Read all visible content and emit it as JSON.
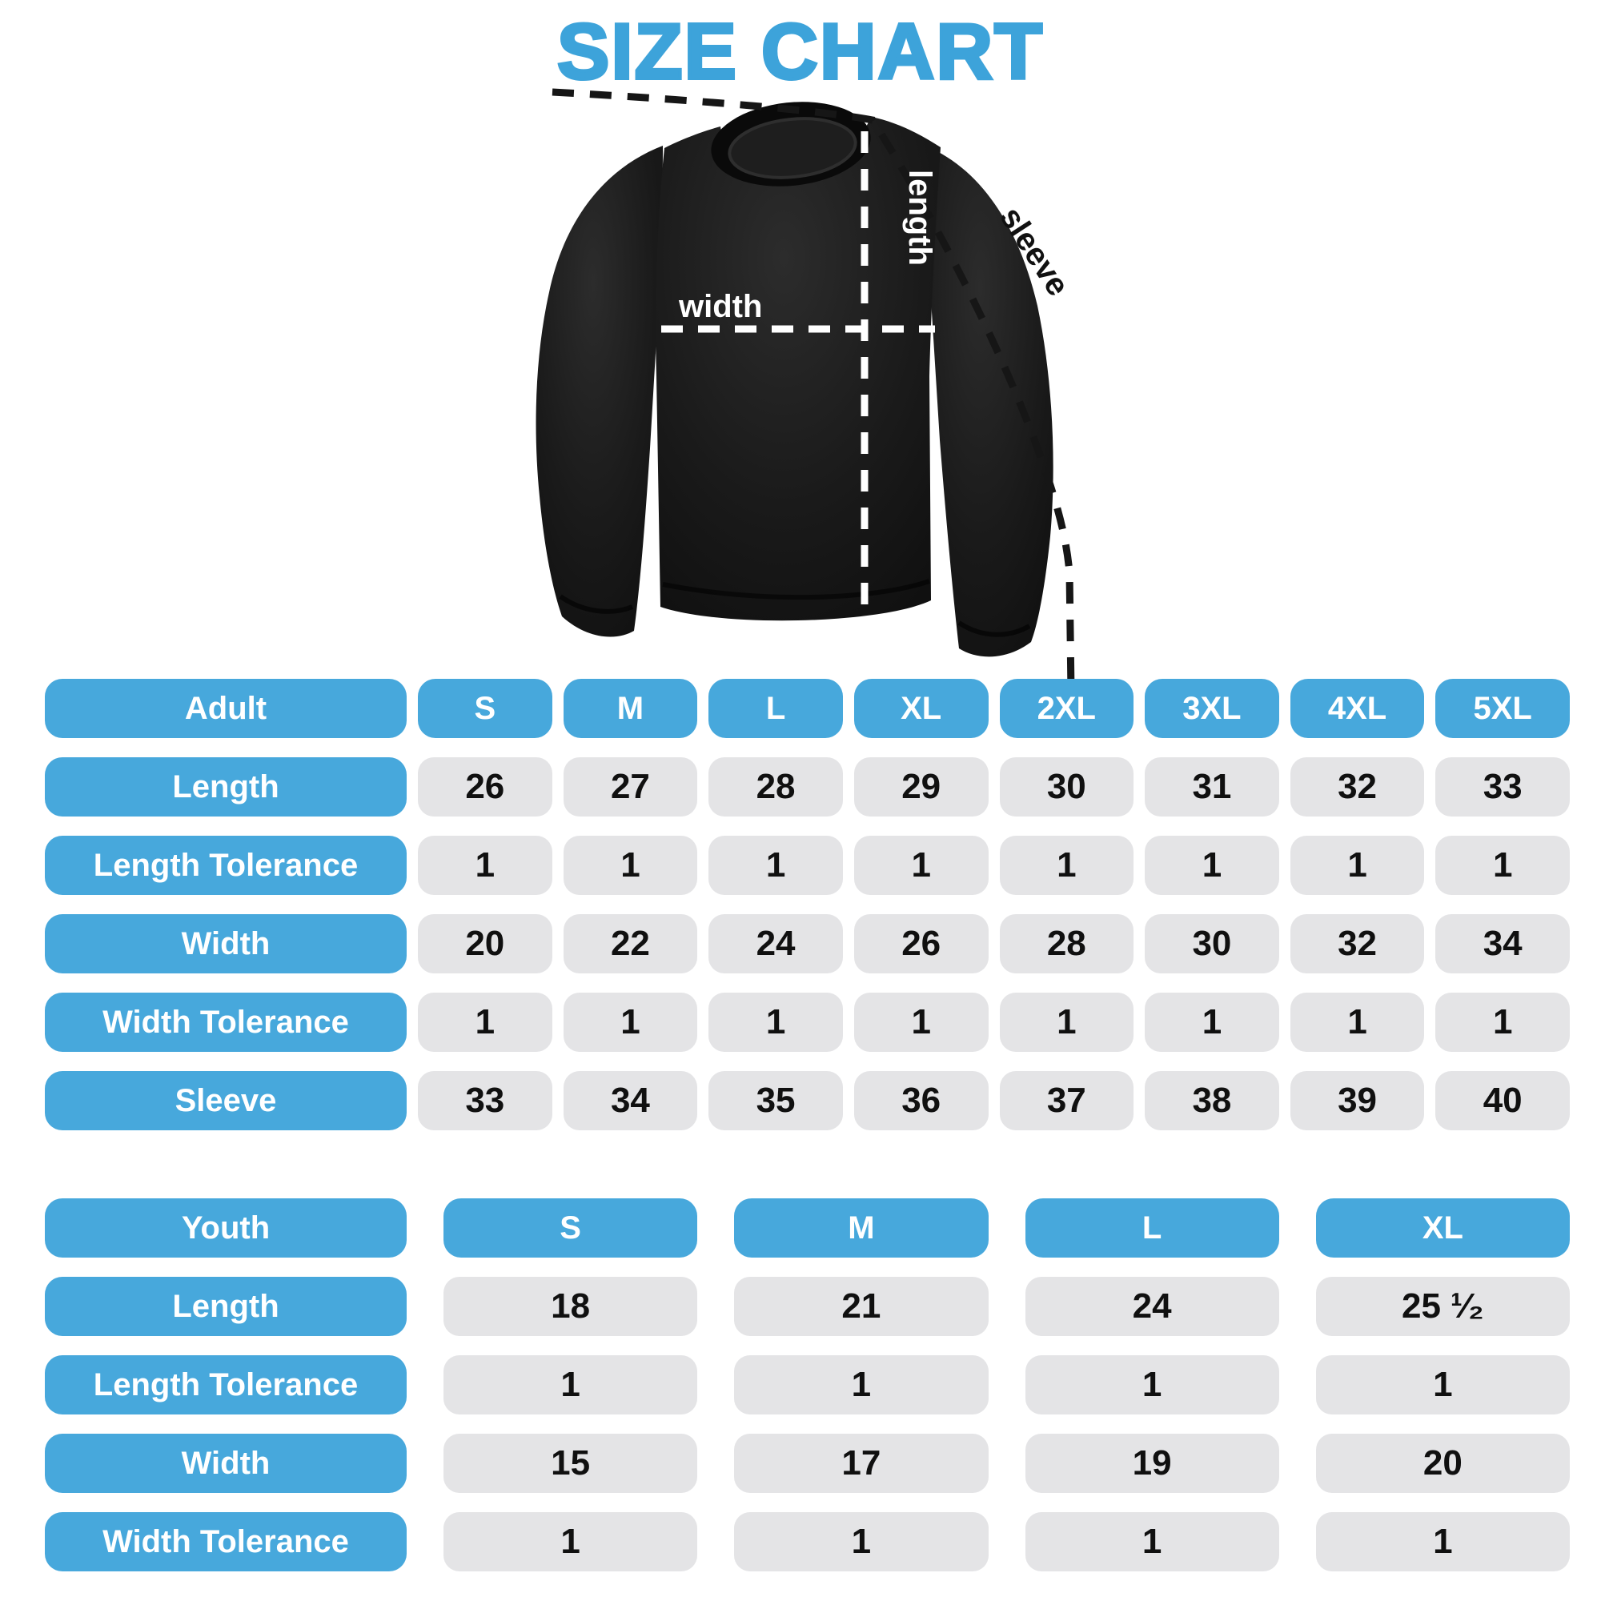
{
  "title": "SIZE CHART",
  "colors": {
    "accent_blue": "#47A8DC",
    "title_blue": "#3DA3DA",
    "cell_grey": "#E4E4E6",
    "number_black": "#101010",
    "shirt_black": "#1a1a1a"
  },
  "diagram": {
    "labels": {
      "length": "length",
      "width": "width",
      "sleeve": "sleeve"
    }
  },
  "adult_table": {
    "header": {
      "label": "Adult",
      "sizes": [
        "S",
        "M",
        "L",
        "XL",
        "2XL",
        "3XL",
        "4XL",
        "5XL"
      ]
    },
    "rows": [
      {
        "label": "Length",
        "values": [
          "26",
          "27",
          "28",
          "29",
          "30",
          "31",
          "32",
          "33"
        ]
      },
      {
        "label": "Length Tolerance",
        "values": [
          "1",
          "1",
          "1",
          "1",
          "1",
          "1",
          "1",
          "1"
        ]
      },
      {
        "label": "Width",
        "values": [
          "20",
          "22",
          "24",
          "26",
          "28",
          "30",
          "32",
          "34"
        ]
      },
      {
        "label": "Width Tolerance",
        "values": [
          "1",
          "1",
          "1",
          "1",
          "1",
          "1",
          "1",
          "1"
        ]
      },
      {
        "label": "Sleeve",
        "values": [
          "33",
          "34",
          "35",
          "36",
          "37",
          "38",
          "39",
          "40"
        ]
      }
    ]
  },
  "youth_table": {
    "header": {
      "label": "Youth",
      "sizes": [
        "S",
        "M",
        "L",
        "XL"
      ]
    },
    "rows": [
      {
        "label": "Length",
        "values": [
          "18",
          "21",
          "24",
          "25 ¹⁄₂"
        ]
      },
      {
        "label": "Length Tolerance",
        "values": [
          "1",
          "1",
          "1",
          "1"
        ]
      },
      {
        "label": "Width",
        "values": [
          "15",
          "17",
          "19",
          "20"
        ]
      },
      {
        "label": "Width Tolerance",
        "values": [
          "1",
          "1",
          "1",
          "1"
        ]
      }
    ]
  },
  "chart_data": [
    {
      "type": "table",
      "title": "Adult size chart (sweatshirt, inches)",
      "columns": [
        "Adult",
        "S",
        "M",
        "L",
        "XL",
        "2XL",
        "3XL",
        "4XL",
        "5XL"
      ],
      "rows": [
        [
          "Length",
          26,
          27,
          28,
          29,
          30,
          31,
          32,
          33
        ],
        [
          "Length Tolerance",
          1,
          1,
          1,
          1,
          1,
          1,
          1,
          1
        ],
        [
          "Width",
          20,
          22,
          24,
          26,
          28,
          30,
          32,
          34
        ],
        [
          "Width Tolerance",
          1,
          1,
          1,
          1,
          1,
          1,
          1,
          1
        ],
        [
          "Sleeve",
          33,
          34,
          35,
          36,
          37,
          38,
          39,
          40
        ]
      ]
    },
    {
      "type": "table",
      "title": "Youth size chart (sweatshirt, inches)",
      "columns": [
        "Youth",
        "S",
        "M",
        "L",
        "XL"
      ],
      "rows": [
        [
          "Length",
          18,
          21,
          24,
          25.5
        ],
        [
          "Length Tolerance",
          1,
          1,
          1,
          1
        ],
        [
          "Width",
          15,
          17,
          19,
          20
        ],
        [
          "Width Tolerance",
          1,
          1,
          1,
          1
        ]
      ]
    }
  ]
}
